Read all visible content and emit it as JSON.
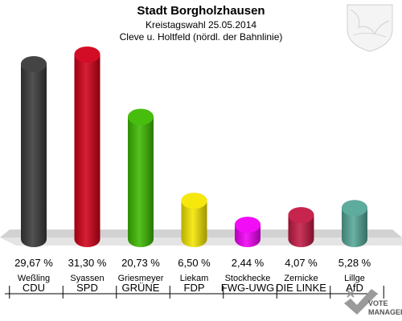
{
  "header": {
    "title": "Stadt Borgholzhausen",
    "subtitle1": "Kreistagswahl 25.05.2014",
    "subtitle2": "Cleve u. Holtfeld (nördl. der Bahnlinie)"
  },
  "chart_data": {
    "type": "bar",
    "title": "Stadt Borgholzhausen",
    "subtitle": "Kreistagswahl 25.05.2014 — Cleve u. Holtfeld (nördl. der Bahnlinie)",
    "categories": [
      "CDU",
      "SPD",
      "GRÜNE",
      "FDP",
      "FWG-UWG",
      "DIE LINKE",
      "AfD"
    ],
    "candidates": [
      "Weßling",
      "Syassen",
      "Griesmeyer",
      "Liekam",
      "Stockhecke",
      "Zernicke",
      "Lillge"
    ],
    "values": [
      29.67,
      31.3,
      20.73,
      6.5,
      2.44,
      4.07,
      5.28
    ],
    "value_labels": [
      "29,67 %",
      "31,30 %",
      "20,73 %",
      "6,50 %",
      "2,44 %",
      "4,07 %",
      "5,28 %"
    ],
    "colors": [
      "#3a3a3a",
      "#d10019",
      "#3dbb00",
      "#f5e600",
      "#f000f5",
      "#c41a45",
      "#55a898"
    ],
    "ylim": [
      0,
      31.3
    ],
    "grid": false,
    "legend": "none"
  },
  "logo": {
    "brand_line1": "VOTE",
    "brand_line2": "MANAGER"
  }
}
